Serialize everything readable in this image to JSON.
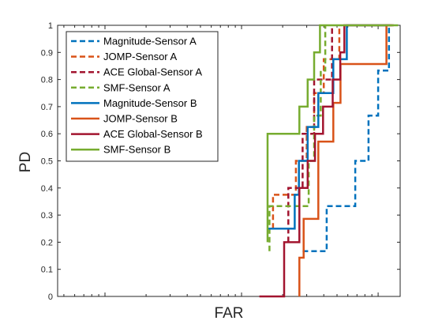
{
  "chart_data": {
    "type": "line",
    "title": "",
    "xlabel": "FAR",
    "ylabel": "PD",
    "xscale": "log",
    "x_ticklabels_shown": false,
    "ylim": [
      0,
      1
    ],
    "yticks": [
      "0",
      "0.1",
      "0.2",
      "0.3",
      "0.4",
      "0.5",
      "0.6",
      "0.7",
      "0.8",
      "0.9",
      "1"
    ],
    "grid": false,
    "legend_position": "top-left",
    "series": [
      {
        "name": "Magnitude-Sensor A",
        "color": "#0072BD",
        "dashed": true,
        "points": [
          [
            0.028,
            0.167
          ],
          [
            0.042,
            0.167
          ],
          [
            0.042,
            0.333
          ],
          [
            0.068,
            0.333
          ],
          [
            0.068,
            0.5
          ],
          [
            0.085,
            0.5
          ],
          [
            0.085,
            0.667
          ],
          [
            0.1,
            0.667
          ],
          [
            0.1,
            0.833
          ],
          [
            0.12,
            0.833
          ],
          [
            0.12,
            1
          ]
        ]
      },
      {
        "name": "JOMP-Sensor A",
        "color": "#D95319",
        "dashed": true,
        "points": [
          [
            0.017,
            0.25
          ],
          [
            0.017,
            0.375
          ],
          [
            0.025,
            0.375
          ],
          [
            0.025,
            0.5
          ],
          [
            0.03,
            0.5
          ],
          [
            0.03,
            0.625
          ],
          [
            0.034,
            0.625
          ],
          [
            0.034,
            0.75
          ],
          [
            0.04,
            0.75
          ],
          [
            0.04,
            0.875
          ],
          [
            0.052,
            0.875
          ],
          [
            0.052,
            1
          ]
        ]
      },
      {
        "name": "ACE Global-Sensor A",
        "color": "#A2142F",
        "dashed": true,
        "points": [
          [
            0.022,
            0.2
          ],
          [
            0.022,
            0.4
          ],
          [
            0.028,
            0.4
          ],
          [
            0.028,
            0.6
          ],
          [
            0.034,
            0.6
          ],
          [
            0.034,
            0.8
          ],
          [
            0.046,
            0.8
          ],
          [
            0.046,
            1
          ]
        ]
      },
      {
        "name": "SMF-Sensor A",
        "color": "#77AC30",
        "dashed": true,
        "points": [
          [
            0.016,
            0.167
          ],
          [
            0.016,
            0.333
          ],
          [
            0.031,
            0.333
          ],
          [
            0.031,
            0.5
          ],
          [
            0.034,
            0.5
          ],
          [
            0.034,
            0.667
          ],
          [
            0.038,
            0.667
          ],
          [
            0.038,
            0.833
          ],
          [
            0.041,
            0.833
          ],
          [
            0.041,
            1
          ]
        ]
      },
      {
        "name": "Magnitude-Sensor B",
        "color": "#0072BD",
        "dashed": false,
        "points": [
          [
            0.0155,
            0.25
          ],
          [
            0.0245,
            0.25
          ],
          [
            0.0245,
            0.375
          ],
          [
            0.0263,
            0.375
          ],
          [
            0.0263,
            0.5
          ],
          [
            0.0305,
            0.5
          ],
          [
            0.0305,
            0.625
          ],
          [
            0.0365,
            0.625
          ],
          [
            0.0365,
            0.75
          ],
          [
            0.047,
            0.75
          ],
          [
            0.047,
            0.875
          ],
          [
            0.059,
            0.875
          ],
          [
            0.059,
            1
          ],
          [
            0.123,
            1
          ]
        ]
      },
      {
        "name": "JOMP-Sensor B",
        "color": "#D95319",
        "dashed": false,
        "points": [
          [
            0.0265,
            0
          ],
          [
            0.0265,
            0.143
          ],
          [
            0.0285,
            0.143
          ],
          [
            0.0285,
            0.286
          ],
          [
            0.0365,
            0.286
          ],
          [
            0.0365,
            0.571
          ],
          [
            0.047,
            0.571
          ],
          [
            0.047,
            0.714
          ],
          [
            0.053,
            0.714
          ],
          [
            0.053,
            0.857
          ],
          [
            0.115,
            0.857
          ],
          [
            0.115,
            1
          ],
          [
            0.127,
            1
          ]
        ]
      },
      {
        "name": "ACE Global-Sensor B",
        "color": "#A2142F",
        "dashed": false,
        "points": [
          [
            0.0135,
            0
          ],
          [
            0.0205,
            0
          ],
          [
            0.0205,
            0.2
          ],
          [
            0.0265,
            0.2
          ],
          [
            0.0265,
            0.4
          ],
          [
            0.0305,
            0.4
          ],
          [
            0.0305,
            0.5
          ],
          [
            0.0345,
            0.5
          ],
          [
            0.0345,
            0.6
          ],
          [
            0.0395,
            0.6
          ],
          [
            0.0395,
            0.7
          ],
          [
            0.0465,
            0.7
          ],
          [
            0.0465,
            0.8
          ],
          [
            0.0528,
            0.8
          ],
          [
            0.0528,
            0.9
          ],
          [
            0.0566,
            0.9
          ],
          [
            0.0566,
            1
          ],
          [
            0.13,
            1
          ]
        ]
      },
      {
        "name": "SMF-Sensor B",
        "color": "#77AC30",
        "dashed": false,
        "points": [
          [
            0.0155,
            0.2
          ],
          [
            0.0155,
            0.6
          ],
          [
            0.0265,
            0.6
          ],
          [
            0.0265,
            0.7
          ],
          [
            0.0305,
            0.7
          ],
          [
            0.0305,
            0.8
          ],
          [
            0.034,
            0.8
          ],
          [
            0.034,
            0.9
          ],
          [
            0.0375,
            0.9
          ],
          [
            0.0375,
            1
          ],
          [
            0.14,
            1
          ]
        ]
      }
    ]
  }
}
